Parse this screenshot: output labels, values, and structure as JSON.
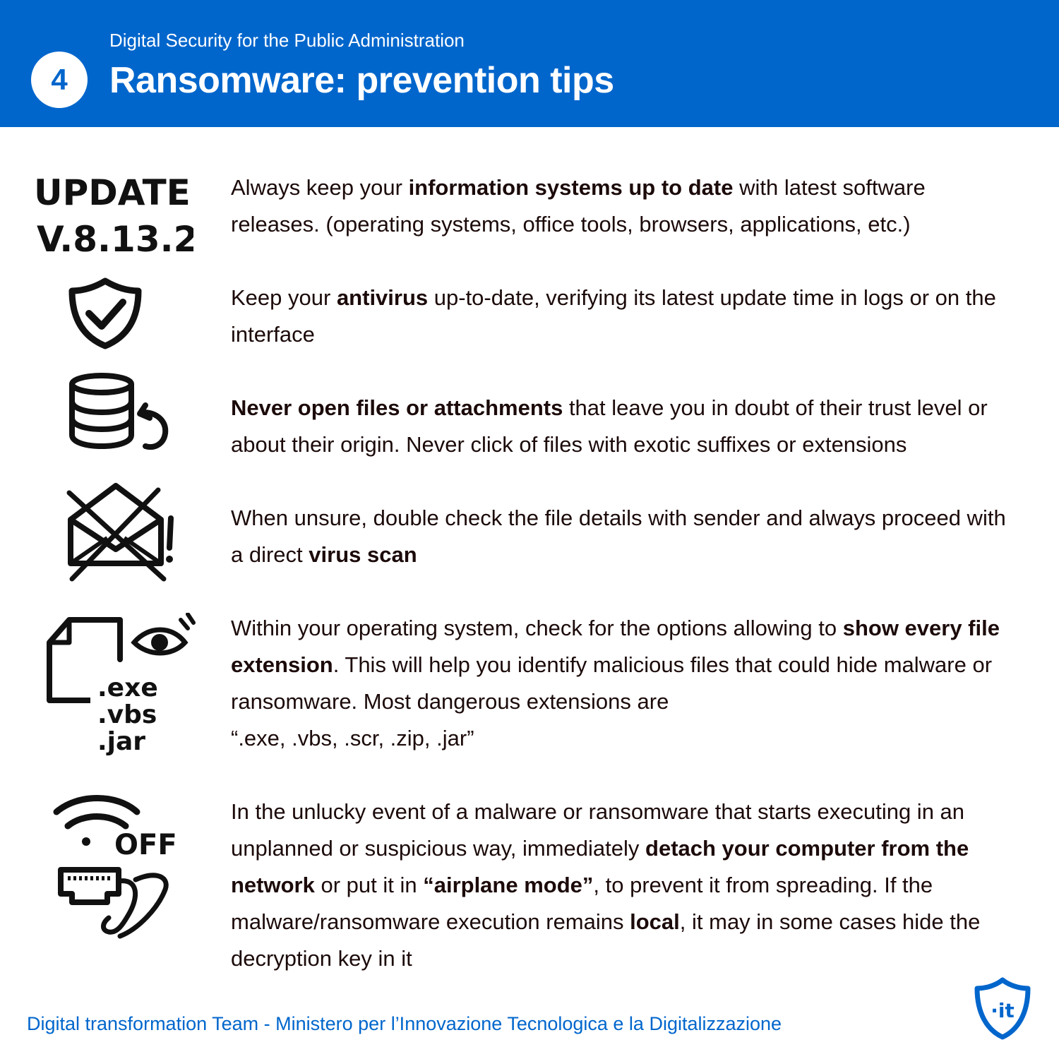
{
  "header": {
    "badge": "4",
    "subtitle": "Digital Security for the Public Administration",
    "title": "Ransomware: prevention tips"
  },
  "tips": [
    {
      "icon": "update-version-icon",
      "icon_text": [
        "UPDATE",
        "V.8.13.2"
      ],
      "parts": [
        {
          "t": "Always keep your ",
          "b": false
        },
        {
          "t": "information systems up to date",
          "b": true
        },
        {
          "t": " with latest software releases. (operating systems, office tools, browsers, applications, etc.)",
          "b": false
        }
      ]
    },
    {
      "icon": "shield-check-icon",
      "parts": [
        {
          "t": "Keep your ",
          "b": false
        },
        {
          "t": "antivirus",
          "b": true
        },
        {
          "t": " up-to-date, verifying its latest update time in logs or on the interface",
          "b": false
        }
      ]
    },
    {
      "icon": "database-restore-icon",
      "parts": [
        {
          "t": "Never open files or attachments",
          "b": true
        },
        {
          "t": " that leave you in doubt of their trust level or about their origin. Never click of files with exotic suffixes or extensions",
          "b": false
        }
      ]
    },
    {
      "icon": "crossed-envelope-warning-icon",
      "parts": [
        {
          "t": "When unsure, double check the file details with sender and always proceed with a direct ",
          "b": false
        },
        {
          "t": "virus scan",
          "b": true
        }
      ]
    },
    {
      "icon": "file-extension-eye-icon",
      "icon_text": [
        ".exe",
        ".vbs",
        ".jar"
      ],
      "parts": [
        {
          "t": "Within your operating system, check for the options allowing to ",
          "b": false
        },
        {
          "t": "show every file extension",
          "b": true
        },
        {
          "t": ". This will help you identify malicious files that could hide malware or ransomware. Most dangerous extensions are ",
          "b": false
        },
        {
          "t": "“.exe, .vbs, .scr, .zip, .jar”",
          "b": false,
          "br": true
        }
      ]
    },
    {
      "icon": "wifi-off-ethernet-icon",
      "icon_text": [
        "OFF"
      ],
      "parts": [
        {
          "t": "In the unlucky event of a malware or ransomware that starts executing in an unplanned or suspicious way, immediately ",
          "b": false
        },
        {
          "t": "detach your computer from the network",
          "b": true
        },
        {
          "t": " or put it in ",
          "b": false
        },
        {
          "t": "“airplane mode”",
          "b": true
        },
        {
          "t": ", to prevent it from spreading. If the malware/ransomware execution remains ",
          "b": false
        },
        {
          "t": "local",
          "b": true
        },
        {
          "t": ", it may in some cases hide the decryption key in it",
          "b": false
        }
      ]
    }
  ],
  "footer": {
    "text": "Digital transformation Team - Ministero per l’Innovazione Tecnologica e la Digitalizzazione",
    "logo_text": "·it",
    "logo_icon": "italy-shield-logo-icon"
  },
  "colors": {
    "brand_blue": "#0066cc",
    "body_text": "#1c0a0a",
    "background": "#ffffff"
  }
}
